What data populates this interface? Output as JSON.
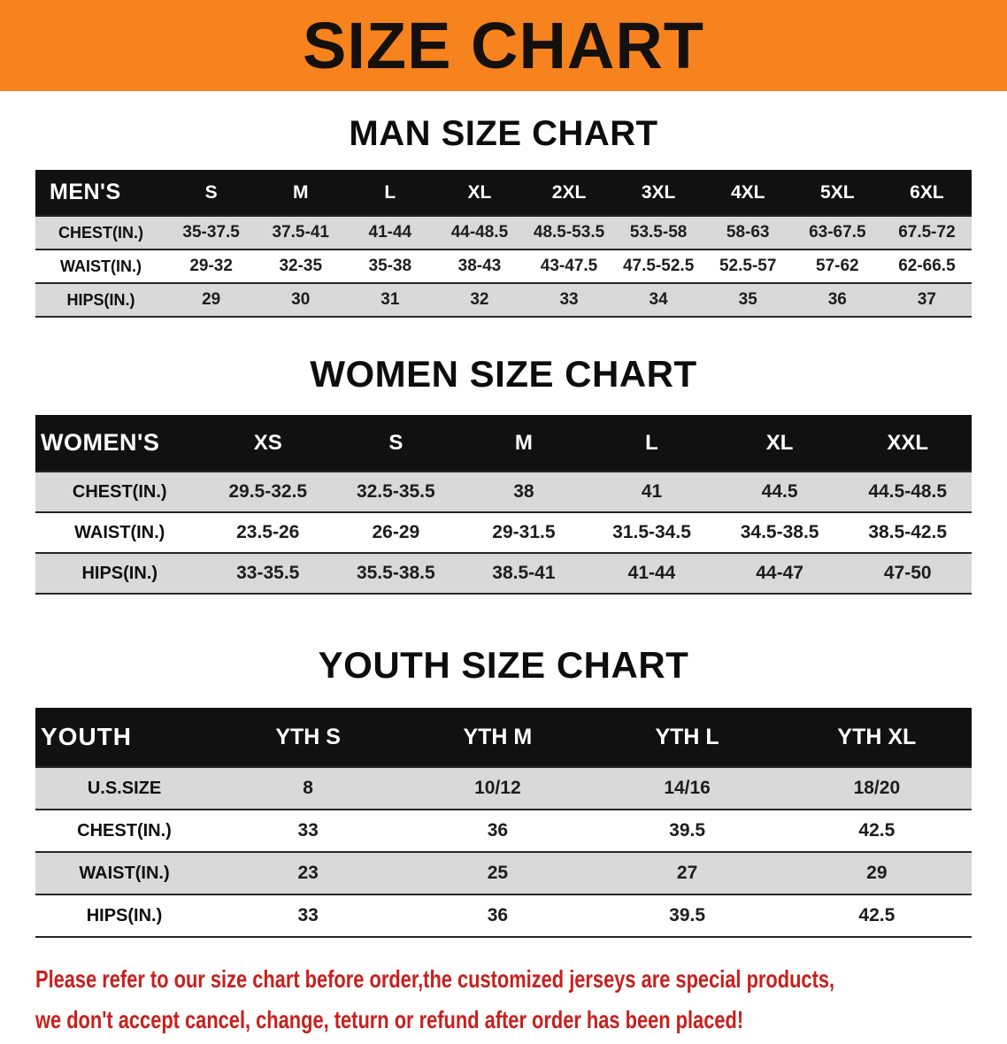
{
  "banner": {
    "title": "SIZE CHART"
  },
  "colors": {
    "banner_bg": "#F6831D",
    "header_bg": "#111111",
    "row_shade": "#D9D9D9",
    "footer_red": "#C8201D"
  },
  "sections": [
    {
      "heading": "MAN SIZE CHART",
      "table": {
        "header": [
          "MEN'S",
          "S",
          "M",
          "L",
          "XL",
          "2XL",
          "3XL",
          "4XL",
          "5XL",
          "6XL"
        ],
        "rows": [
          [
            "CHEST(IN.)",
            "35-37.5",
            "37.5-41",
            "41-44",
            "44-48.5",
            "48.5-53.5",
            "53.5-58",
            "58-63",
            "63-67.5",
            "67.5-72"
          ],
          [
            "WAIST(IN.)",
            "29-32",
            "32-35",
            "35-38",
            "38-43",
            "43-47.5",
            "47.5-52.5",
            "52.5-57",
            "57-62",
            "62-66.5"
          ],
          [
            "HIPS(IN.)",
            "29",
            "30",
            "31",
            "32",
            "33",
            "34",
            "35",
            "36",
            "37"
          ]
        ]
      }
    },
    {
      "heading": "WOMEN SIZE CHART",
      "table": {
        "header": [
          "WOMEN'S",
          "XS",
          "S",
          "M",
          "L",
          "XL",
          "XXL"
        ],
        "rows": [
          [
            "CHEST(IN.)",
            "29.5-32.5",
            "32.5-35.5",
            "38",
            "41",
            "44.5",
            "44.5-48.5"
          ],
          [
            "WAIST(IN.)",
            "23.5-26",
            "26-29",
            "29-31.5",
            "31.5-34.5",
            "34.5-38.5",
            "38.5-42.5"
          ],
          [
            "HIPS(IN.)",
            "33-35.5",
            "35.5-38.5",
            "38.5-41",
            "41-44",
            "44-47",
            "47-50"
          ]
        ]
      }
    },
    {
      "heading": "YOUTH SIZE CHART",
      "table": {
        "header": [
          "YOUTH",
          "YTH S",
          "YTH M",
          "YTH L",
          "YTH XL"
        ],
        "rows": [
          [
            "U.S.SIZE",
            "8",
            "10/12",
            "14/16",
            "18/20"
          ],
          [
            "CHEST(IN.)",
            "33",
            "36",
            "39.5",
            "42.5"
          ],
          [
            "WAIST(IN.)",
            "23",
            "25",
            "27",
            "29"
          ],
          [
            "HIPS(IN.)",
            "33",
            "36",
            "39.5",
            "42.5"
          ]
        ]
      }
    }
  ],
  "footer": {
    "lines": [
      "Please refer to our size chart before order,the customized jerseys are special products,",
      "we don't accept cancel, change, teturn or refund after order has been placed!"
    ]
  }
}
